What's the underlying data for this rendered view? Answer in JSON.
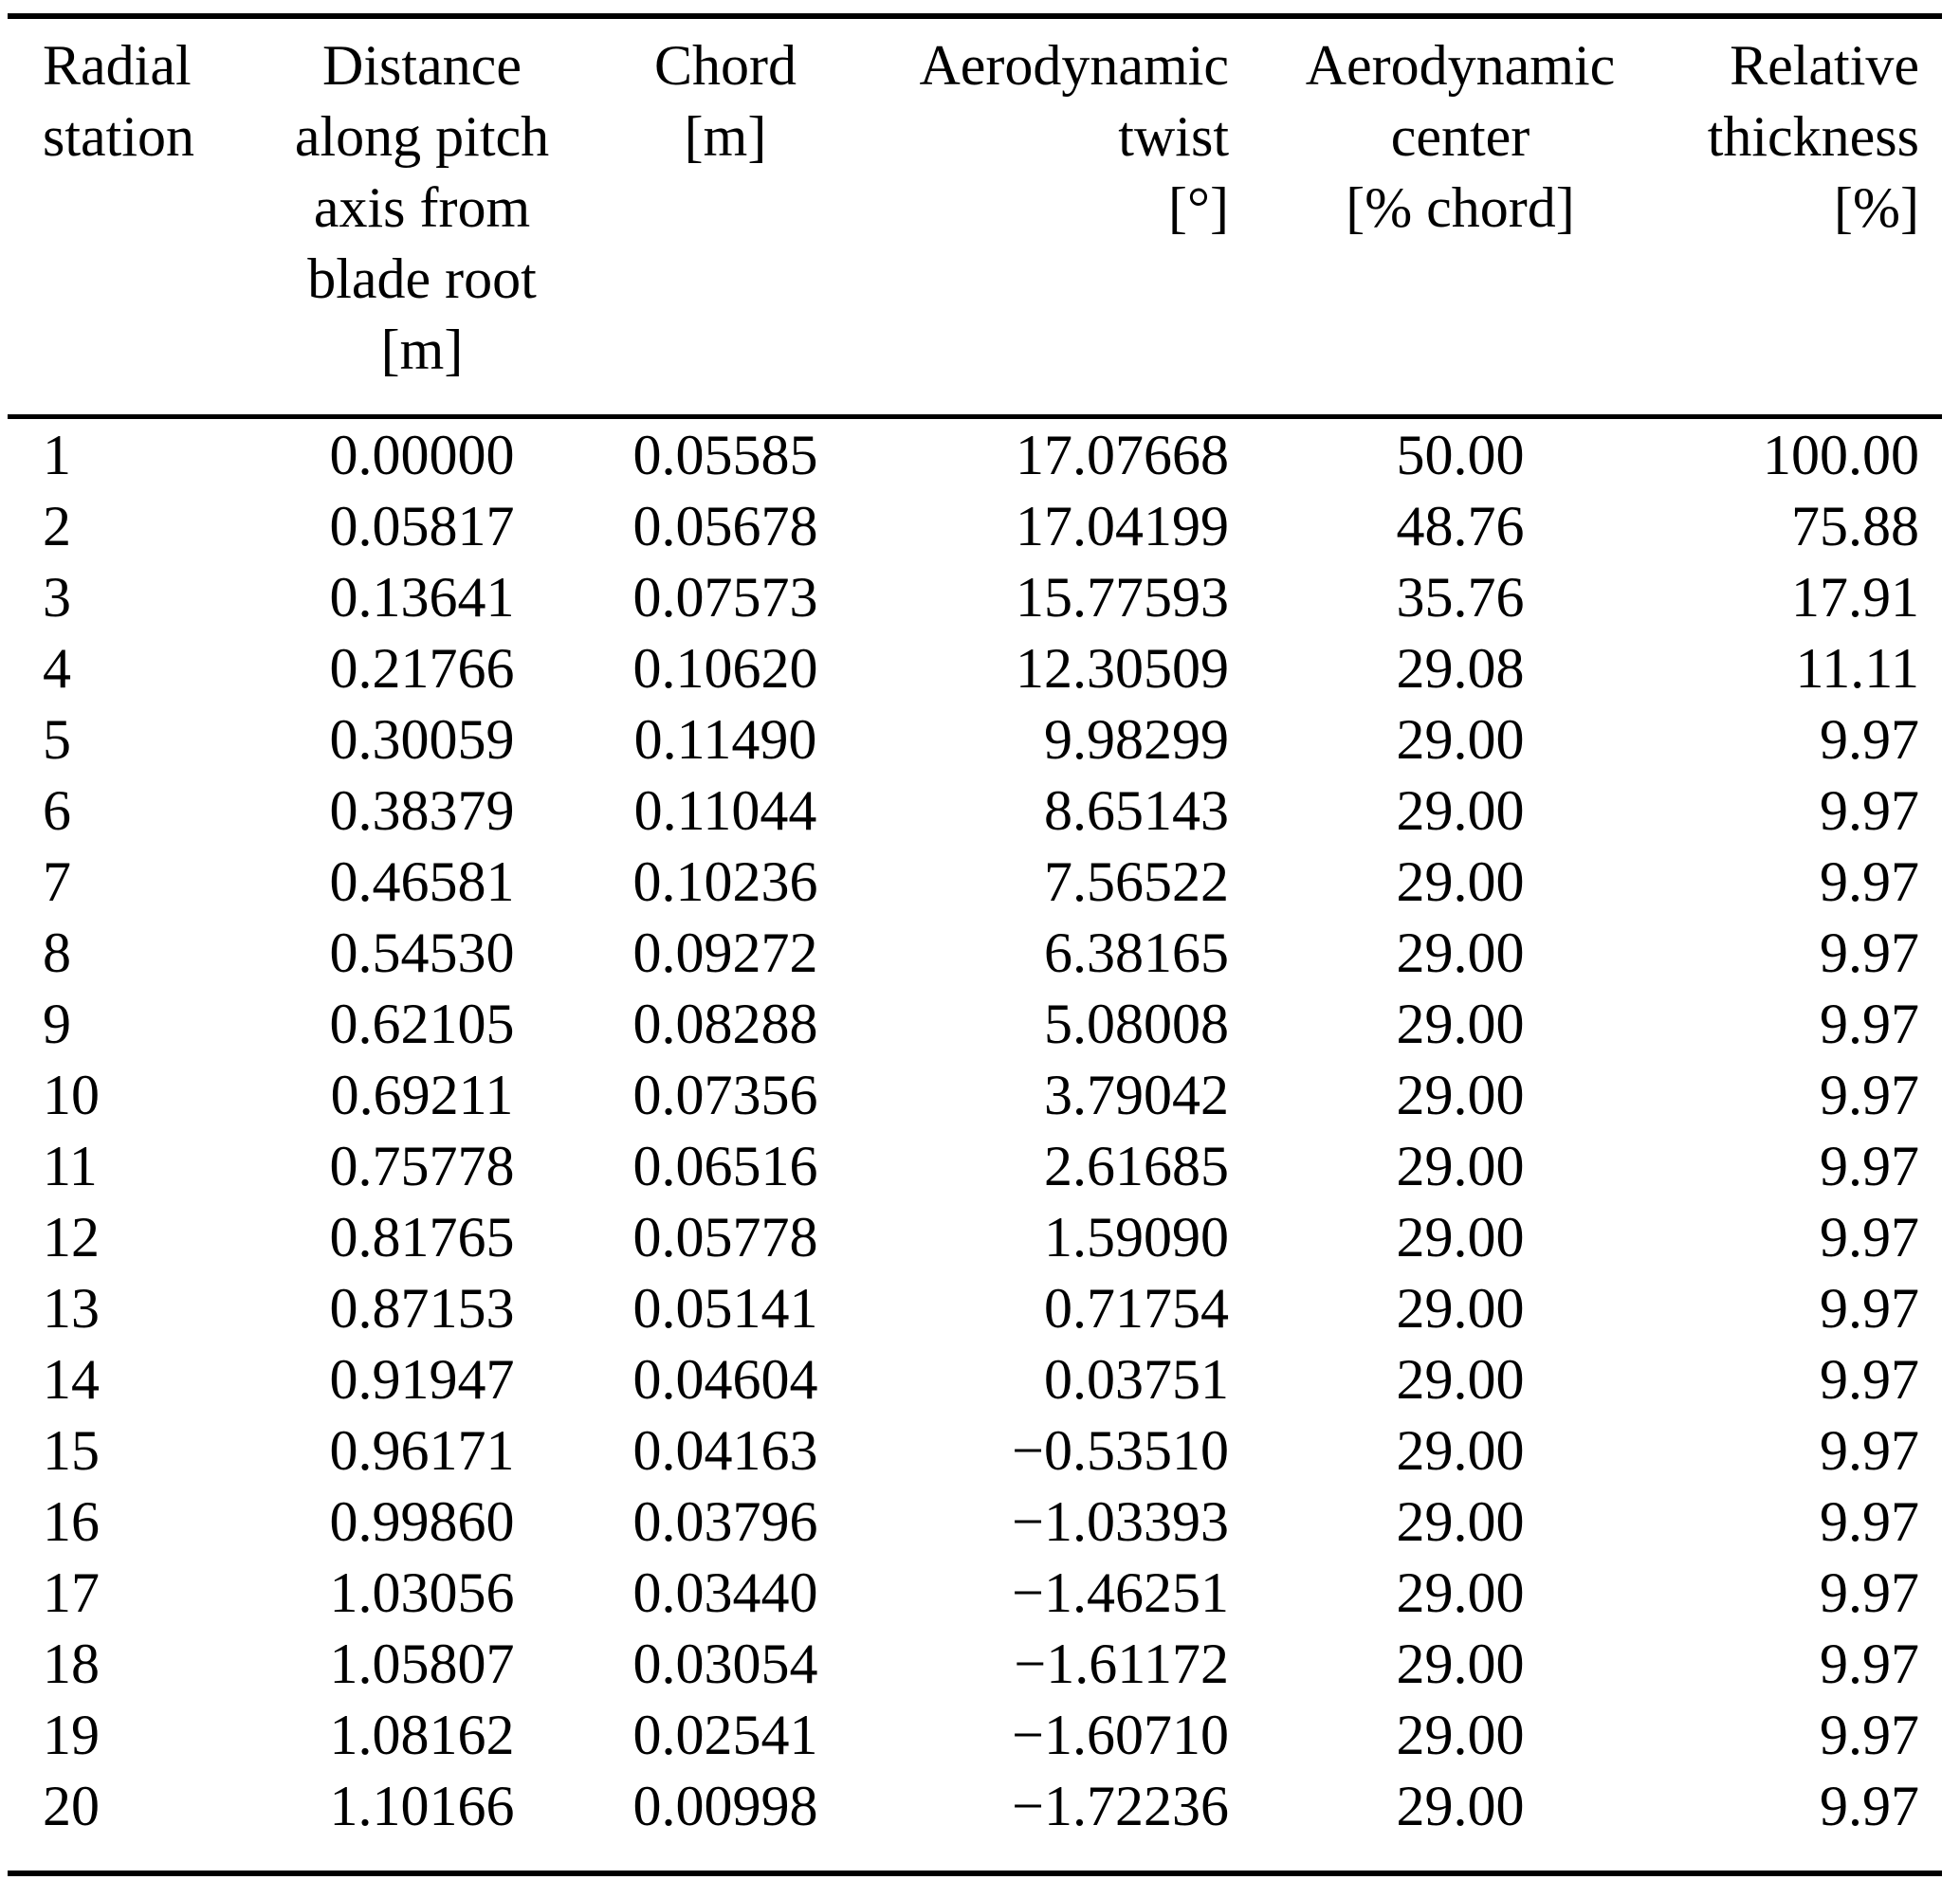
{
  "colors": {
    "background": "#ffffff",
    "text": "#000000",
    "rule": "#000000"
  },
  "table": {
    "columns": [
      {
        "label": "Radial\nstation"
      },
      {
        "label": "Distance\nalong pitch\naxis from\nblade root\n[m]"
      },
      {
        "label": "Chord\n[m]"
      },
      {
        "label": "Aerodynamic\ntwist\n[°]"
      },
      {
        "label": "Aerodynamic\ncenter\n[% chord]"
      },
      {
        "label": "Relative\nthickness\n[%]"
      }
    ],
    "rows": [
      [
        "1",
        "0.00000",
        "0.05585",
        "17.07668",
        "50.00",
        "100.00"
      ],
      [
        "2",
        "0.05817",
        "0.05678",
        "17.04199",
        "48.76",
        "75.88"
      ],
      [
        "3",
        "0.13641",
        "0.07573",
        "15.77593",
        "35.76",
        "17.91"
      ],
      [
        "4",
        "0.21766",
        "0.10620",
        "12.30509",
        "29.08",
        "11.11"
      ],
      [
        "5",
        "0.30059",
        "0.11490",
        "9.98299",
        "29.00",
        "9.97"
      ],
      [
        "6",
        "0.38379",
        "0.11044",
        "8.65143",
        "29.00",
        "9.97"
      ],
      [
        "7",
        "0.46581",
        "0.10236",
        "7.56522",
        "29.00",
        "9.97"
      ],
      [
        "8",
        "0.54530",
        "0.09272",
        "6.38165",
        "29.00",
        "9.97"
      ],
      [
        "9",
        "0.62105",
        "0.08288",
        "5.08008",
        "29.00",
        "9.97"
      ],
      [
        "10",
        "0.69211",
        "0.07356",
        "3.79042",
        "29.00",
        "9.97"
      ],
      [
        "11",
        "0.75778",
        "0.06516",
        "2.61685",
        "29.00",
        "9.97"
      ],
      [
        "12",
        "0.81765",
        "0.05778",
        "1.59090",
        "29.00",
        "9.97"
      ],
      [
        "13",
        "0.87153",
        "0.05141",
        "0.71754",
        "29.00",
        "9.97"
      ],
      [
        "14",
        "0.91947",
        "0.04604",
        "0.03751",
        "29.00",
        "9.97"
      ],
      [
        "15",
        "0.96171",
        "0.04163",
        "−0.53510",
        "29.00",
        "9.97"
      ],
      [
        "16",
        "0.99860",
        "0.03796",
        "−1.03393",
        "29.00",
        "9.97"
      ],
      [
        "17",
        "1.03056",
        "0.03440",
        "−1.46251",
        "29.00",
        "9.97"
      ],
      [
        "18",
        "1.05807",
        "0.03054",
        "−1.61172",
        "29.00",
        "9.97"
      ],
      [
        "19",
        "1.08162",
        "0.02541",
        "−1.60710",
        "29.00",
        "9.97"
      ],
      [
        "20",
        "1.10166",
        "0.00998",
        "−1.72236",
        "29.00",
        "9.97"
      ]
    ]
  }
}
